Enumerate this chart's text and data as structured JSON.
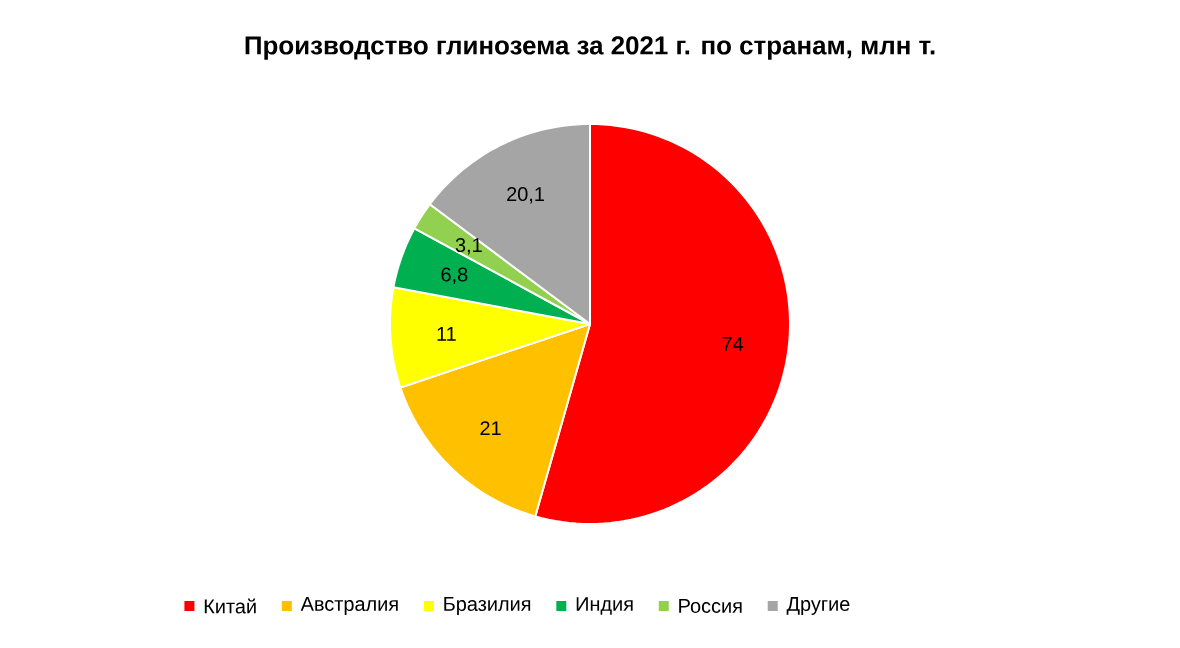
{
  "chart_data": {
    "type": "pie",
    "title": "Производство глинозема за 2021 г. по странам, млн т.",
    "categories": [
      "Китай",
      "Австралия",
      "Бразилия",
      "Индия",
      "Россия",
      "Другие"
    ],
    "values": [
      74,
      21,
      11,
      6.8,
      3.1,
      20.1
    ],
    "colors": [
      "#ff0000",
      "#ffc000",
      "#ffff00",
      "#00b050",
      "#92d050",
      "#a5a5a5"
    ],
    "value_labels": [
      "74",
      "21",
      "11",
      "6,8",
      "3,1",
      "20,1"
    ],
    "legend": "bottom"
  }
}
